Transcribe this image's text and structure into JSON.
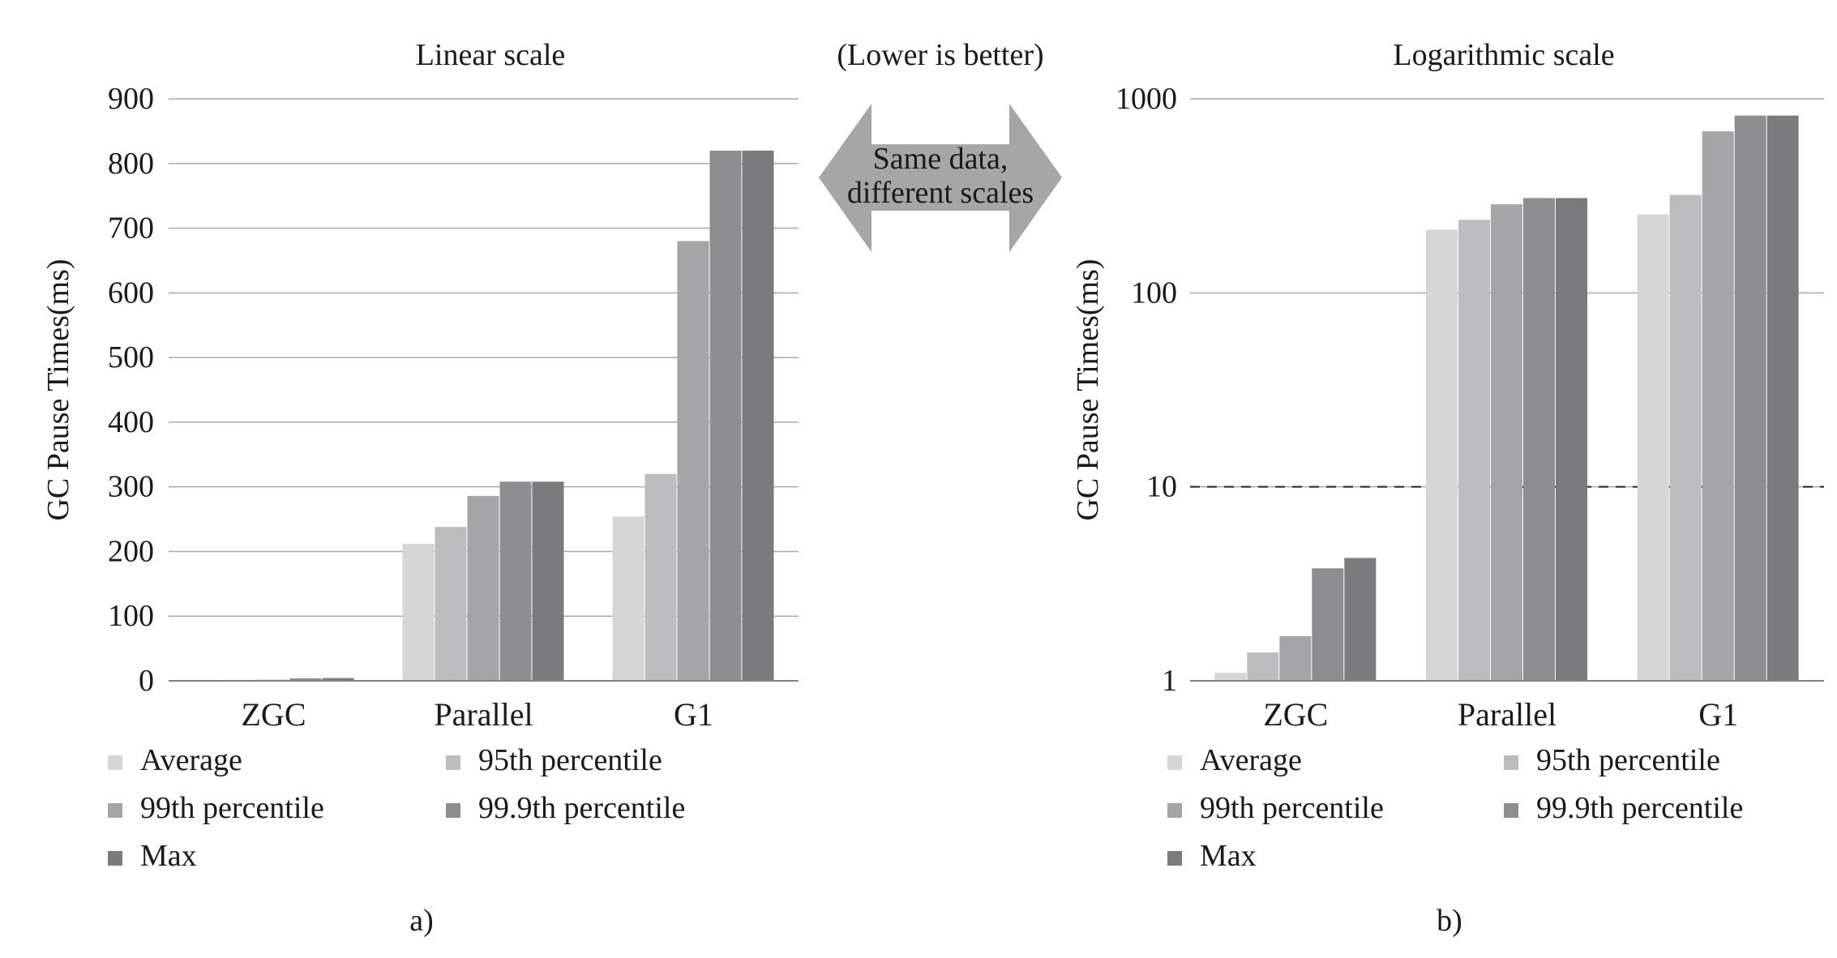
{
  "center_note": "(Lower is better)",
  "arrow_label": [
    "Same data,",
    "different scales"
  ],
  "colors": {
    "series": [
      "#d6d6d6",
      "#bdbdbf",
      "#a5a5a7",
      "#8e8e90",
      "#7b7b7d"
    ],
    "grid": "#a9a9a9",
    "axis": "#7f7f7f",
    "arrow": "#a6a6a6"
  },
  "chart_data": [
    {
      "type": "bar",
      "panel_label": "a)",
      "title": "Linear scale",
      "ylabel": "GC Pause Times(ms)",
      "xlabel": "",
      "scale": "linear",
      "ylim": [
        0,
        900
      ],
      "yticks": [
        0,
        100,
        200,
        300,
        400,
        500,
        600,
        700,
        800,
        900
      ],
      "ytick_labels": [
        "0",
        "100",
        "200",
        "300",
        "400",
        "500",
        "600",
        "700",
        "800",
        "900"
      ],
      "grid": true,
      "categories": [
        "ZGC",
        "Parallel",
        "G1"
      ],
      "series": [
        {
          "name": "Average",
          "values": [
            1.1,
            212,
            254
          ]
        },
        {
          "name": "95th percentile",
          "values": [
            1.4,
            238,
            320
          ]
        },
        {
          "name": "99th percentile",
          "values": [
            1.7,
            286,
            680
          ]
        },
        {
          "name": "99.9th percentile",
          "values": [
            3.8,
            308,
            820
          ]
        },
        {
          "name": "Max",
          "values": [
            4.3,
            308,
            820
          ]
        }
      ],
      "legend_position": "bottom"
    },
    {
      "type": "bar",
      "panel_label": "b)",
      "title": "Logarithmic scale",
      "ylabel": "GC Pause Times(ms)",
      "xlabel": "",
      "scale": "log",
      "ylim": [
        1,
        1000
      ],
      "yticks": [
        1,
        10,
        100,
        1000
      ],
      "ytick_labels": [
        "1",
        "10",
        "100",
        "1000"
      ],
      "grid": true,
      "reference_line": 10,
      "categories": [
        "ZGC",
        "Parallel",
        "G1"
      ],
      "series": [
        {
          "name": "Average",
          "values": [
            1.1,
            212,
            254
          ]
        },
        {
          "name": "95th percentile",
          "values": [
            1.4,
            238,
            320
          ]
        },
        {
          "name": "99th percentile",
          "values": [
            1.7,
            286,
            680
          ]
        },
        {
          "name": "99.9th percentile",
          "values": [
            3.8,
            308,
            820
          ]
        },
        {
          "name": "Max",
          "values": [
            4.3,
            308,
            820
          ]
        }
      ],
      "legend_position": "bottom"
    }
  ]
}
